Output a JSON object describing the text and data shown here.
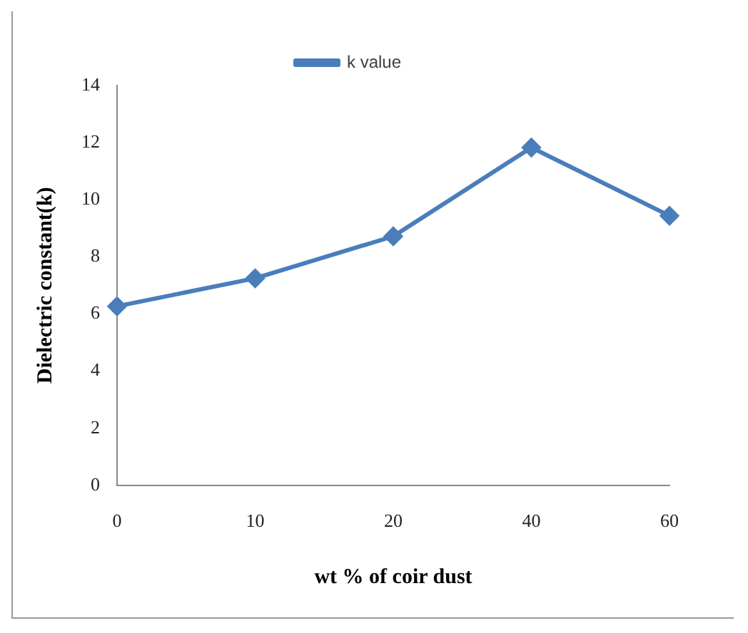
{
  "chart_data": {
    "type": "line",
    "xlabel": "wt % of coir dust",
    "ylabel": "Dielectric constant(k)",
    "categories": [
      "0",
      "10",
      "20",
      "40",
      "60"
    ],
    "series": [
      {
        "name": "k value",
        "color": "#4a7ebb",
        "values": [
          6.27,
          7.25,
          8.72,
          11.83,
          9.44
        ]
      }
    ],
    "ylim": [
      0,
      14
    ],
    "yticks": [
      0,
      2,
      4,
      6,
      8,
      10,
      12,
      14
    ],
    "grid": false,
    "legend": "top",
    "marker": "diamond",
    "line_style": "solid"
  }
}
